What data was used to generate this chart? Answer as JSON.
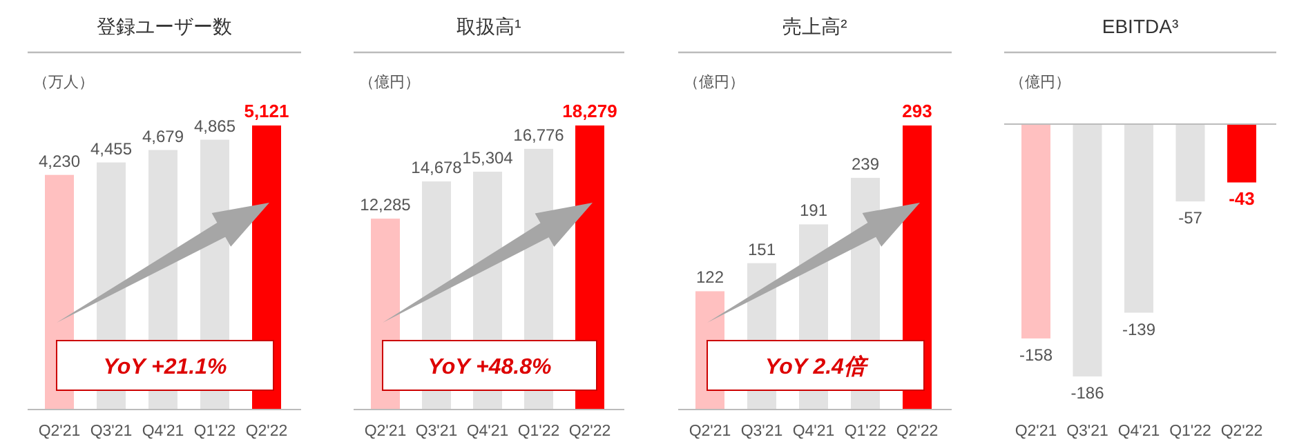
{
  "chart_data": [
    {
      "type": "bar",
      "title": "登録ユーザー数",
      "ylabel": "（万人）",
      "categories": [
        "Q2'21",
        "Q3'21",
        "Q4'21",
        "Q1'22",
        "Q2'22"
      ],
      "values": [
        4230,
        4455,
        4679,
        4865,
        5121
      ],
      "colors": [
        "#ffc0c0",
        "#e2e2e2",
        "#e2e2e2",
        "#e2e2e2",
        "#ff0000"
      ],
      "value_labels": [
        "4,230",
        "4,455",
        "4,679",
        "4,865",
        "5,121"
      ],
      "annotations": [
        "YoY +21.1%"
      ]
    },
    {
      "type": "bar",
      "title": "取扱高¹",
      "ylabel": "（億円）",
      "categories": [
        "Q2'21",
        "Q3'21",
        "Q4'21",
        "Q1'22",
        "Q2'22"
      ],
      "values": [
        12285,
        14678,
        15304,
        16776,
        18279
      ],
      "colors": [
        "#ffc0c0",
        "#e2e2e2",
        "#e2e2e2",
        "#e2e2e2",
        "#ff0000"
      ],
      "value_labels": [
        "12,285",
        "14,678",
        "15,304",
        "16,776",
        "18,279"
      ],
      "annotations": [
        "YoY +48.8%"
      ]
    },
    {
      "type": "bar",
      "title": "売上高²",
      "ylabel": "（億円）",
      "categories": [
        "Q2'21",
        "Q3'21",
        "Q4'21",
        "Q1'22",
        "Q2'22"
      ],
      "values": [
        122,
        151,
        191,
        239,
        293
      ],
      "colors": [
        "#ffc0c0",
        "#e2e2e2",
        "#e2e2e2",
        "#e2e2e2",
        "#ff0000"
      ],
      "data_labels": true,
      "annotations": [
        "YoY 2.4倍"
      ]
    },
    {
      "type": "bar",
      "title": "EBITDA³",
      "ylabel": "（億円）",
      "categories": [
        "Q2'21",
        "Q3'21",
        "Q4'21",
        "Q1'22",
        "Q2'22"
      ],
      "values": [
        -158,
        -186,
        -139,
        -57,
        -43
      ],
      "colors": [
        "#ffc0c0",
        "#e2e2e2",
        "#e2e2e2",
        "#e2e2e2",
        "#ff0000"
      ],
      "data_labels": true
    }
  ]
}
